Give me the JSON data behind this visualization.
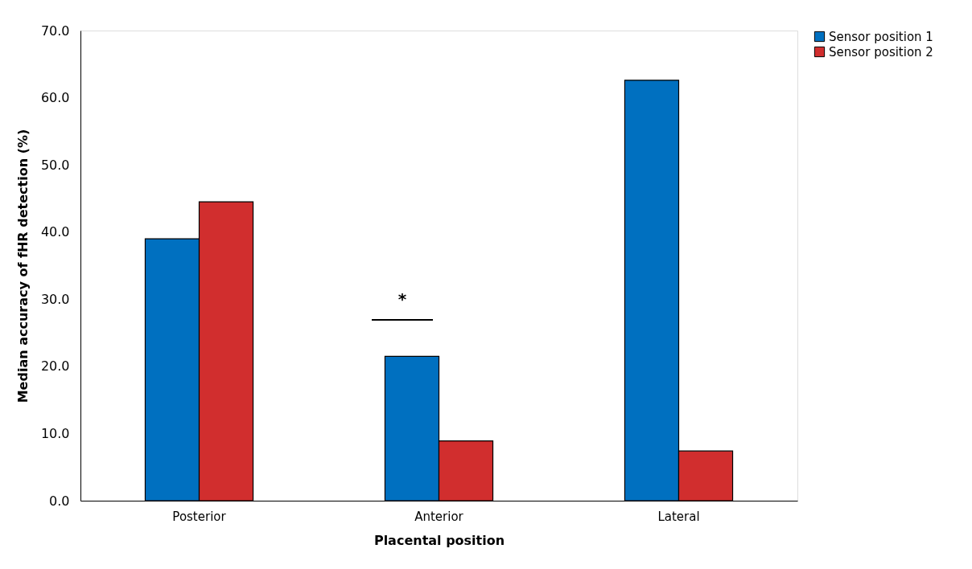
{
  "chart_data": {
    "type": "bar",
    "xlabel": "Placental position",
    "ylabel": "Median accuracy of fHR detection (%)",
    "categories": [
      "Posterior",
      "Anterior",
      "Lateral"
    ],
    "series": [
      {
        "name": "Sensor position 1",
        "color": "#0070c0",
        "values": [
          39.0,
          21.5,
          62.6
        ]
      },
      {
        "name": "Sensor position 2",
        "color": "#d12e2e",
        "values": [
          44.5,
          8.9,
          7.4
        ]
      }
    ],
    "ylim": [
      0,
      70
    ],
    "yticks": [
      {
        "value": 0,
        "label": "0.0"
      },
      {
        "value": 10,
        "label": "10.0"
      },
      {
        "value": 20,
        "label": "20.0"
      },
      {
        "value": 30,
        "label": "30.0"
      },
      {
        "value": 40,
        "label": "40.0"
      },
      {
        "value": 50,
        "label": "50.0"
      },
      {
        "value": 60,
        "label": "60.0"
      },
      {
        "value": 70,
        "label": "70.0"
      }
    ],
    "grid": false,
    "legend": "right",
    "annotations": [
      "*"
    ]
  }
}
